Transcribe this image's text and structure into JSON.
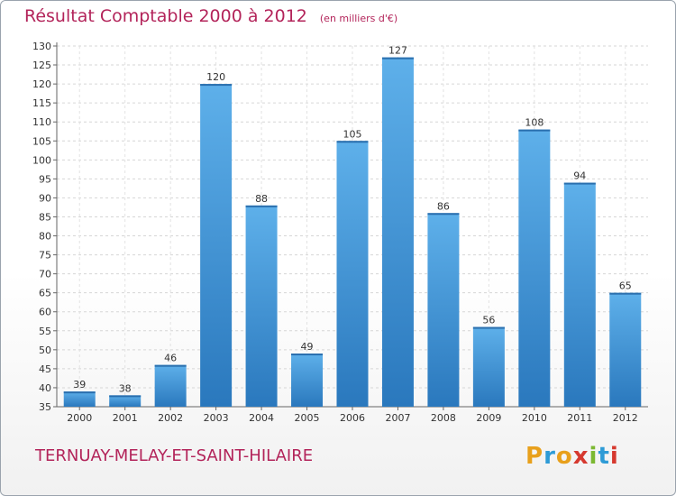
{
  "chart_data": {
    "type": "bar",
    "title": "Résultat Comptable 2000 à 2012",
    "subtitle": "(en milliers d'€)",
    "categories": [
      "2000",
      "2001",
      "2002",
      "2003",
      "2004",
      "2005",
      "2006",
      "2007",
      "2008",
      "2009",
      "2010",
      "2011",
      "2012"
    ],
    "values": [
      39,
      38,
      46,
      120,
      88,
      49,
      105,
      127,
      86,
      56,
      108,
      94,
      65
    ],
    "ylim": [
      35,
      130
    ],
    "yticks": [
      35,
      40,
      45,
      50,
      55,
      60,
      65,
      70,
      75,
      80,
      85,
      90,
      95,
      100,
      105,
      110,
      115,
      120,
      125,
      130
    ],
    "grid": true,
    "bar_color": "#4a9fe0"
  },
  "footer": {
    "commune": "TERNUAY-MELAY-ET-SAINT-HILAIRE",
    "logo_letters": [
      "P",
      "r",
      "o",
      "x",
      "i",
      "t",
      "i"
    ],
    "logo_colors": [
      "#e8a01c",
      "#2e9bd6",
      "#e8a01c",
      "#d6392f",
      "#7cb832",
      "#2e9bd6",
      "#d6392f"
    ]
  }
}
